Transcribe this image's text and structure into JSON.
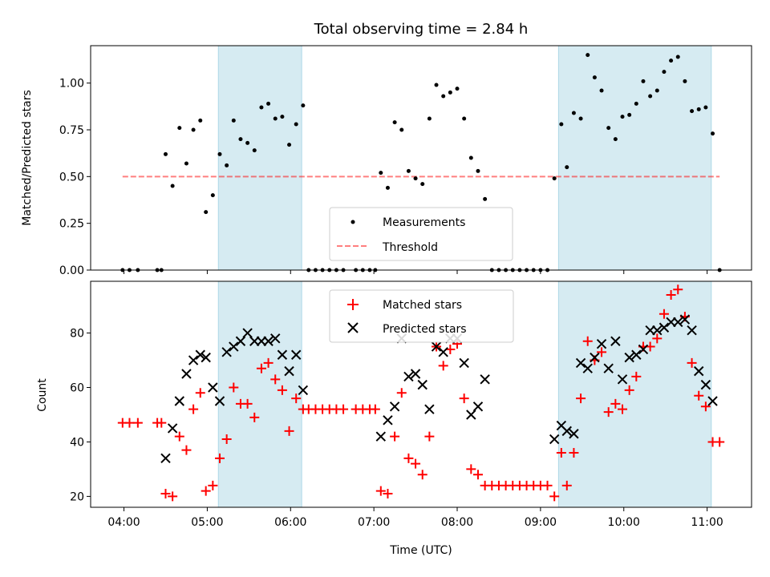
{
  "chart_data": [
    {
      "type": "scatter",
      "title": "Total observing time = 2.84 h",
      "xlabel": "",
      "ylabel": "Matched/Predicted stars",
      "xlim": [
        "03:36",
        "11:32"
      ],
      "ylim": [
        0,
        1.2
      ],
      "yticks": [
        0.0,
        0.25,
        0.5,
        0.75,
        1.0
      ],
      "ytick_labels": [
        "0.00",
        "0.25",
        "0.50",
        "0.75",
        "1.00"
      ],
      "shaded_intervals": [
        [
          "05:08",
          "06:08"
        ],
        [
          "09:13",
          "11:03"
        ]
      ],
      "shade_color": "#add8e6",
      "legend": {
        "placement": "lower center",
        "entries": [
          "Measurements",
          "Threshold"
        ]
      },
      "threshold": {
        "name": "Threshold",
        "value": 0.5,
        "x_range": [
          "03:59",
          "11:09"
        ],
        "color": "#ff0000",
        "style": "dashed",
        "alpha": 0.5
      },
      "series": [
        {
          "name": "Measurements",
          "marker": "dot",
          "color": "#000000",
          "points": [
            [
              "03:59",
              0.0
            ],
            [
              "04:04",
              0.0
            ],
            [
              "04:10",
              0.0
            ],
            [
              "04:24",
              0.0
            ],
            [
              "04:27",
              0.0
            ],
            [
              "04:30",
              0.62
            ],
            [
              "04:35",
              0.45
            ],
            [
              "04:40",
              0.76
            ],
            [
              "04:45",
              0.57
            ],
            [
              "04:50",
              0.75
            ],
            [
              "04:55",
              0.8
            ],
            [
              "04:59",
              0.31
            ],
            [
              "05:04",
              0.4
            ],
            [
              "05:09",
              0.62
            ],
            [
              "05:14",
              0.56
            ],
            [
              "05:19",
              0.8
            ],
            [
              "05:24",
              0.7
            ],
            [
              "05:29",
              0.68
            ],
            [
              "05:34",
              0.64
            ],
            [
              "05:39",
              0.87
            ],
            [
              "05:44",
              0.89
            ],
            [
              "05:49",
              0.81
            ],
            [
              "05:54",
              0.82
            ],
            [
              "05:59",
              0.67
            ],
            [
              "06:04",
              0.78
            ],
            [
              "06:09",
              0.88
            ],
            [
              "06:13",
              0.0
            ],
            [
              "06:18",
              0.0
            ],
            [
              "06:23",
              0.0
            ],
            [
              "06:28",
              0.0
            ],
            [
              "06:33",
              0.0
            ],
            [
              "06:38",
              0.0
            ],
            [
              "06:47",
              0.0
            ],
            [
              "06:52",
              0.0
            ],
            [
              "06:57",
              0.0
            ],
            [
              "07:01",
              0.0
            ],
            [
              "07:05",
              0.52
            ],
            [
              "07:10",
              0.44
            ],
            [
              "07:15",
              0.79
            ],
            [
              "07:20",
              0.75
            ],
            [
              "07:25",
              0.53
            ],
            [
              "07:30",
              0.49
            ],
            [
              "07:35",
              0.46
            ],
            [
              "07:40",
              0.81
            ],
            [
              "07:45",
              0.99
            ],
            [
              "07:50",
              0.93
            ],
            [
              "07:55",
              0.95
            ],
            [
              "08:00",
              0.97
            ],
            [
              "08:05",
              0.81
            ],
            [
              "08:10",
              0.6
            ],
            [
              "08:15",
              0.53
            ],
            [
              "08:20",
              0.38
            ],
            [
              "08:25",
              0.0
            ],
            [
              "08:30",
              0.0
            ],
            [
              "08:35",
              0.0
            ],
            [
              "08:40",
              0.0
            ],
            [
              "08:45",
              0.0
            ],
            [
              "08:50",
              0.0
            ],
            [
              "08:55",
              0.0
            ],
            [
              "09:00",
              0.0
            ],
            [
              "09:05",
              0.0
            ],
            [
              "09:10",
              0.49
            ],
            [
              "09:15",
              0.78
            ],
            [
              "09:19",
              0.55
            ],
            [
              "09:24",
              0.84
            ],
            [
              "09:29",
              0.81
            ],
            [
              "09:34",
              1.15
            ],
            [
              "09:39",
              1.03
            ],
            [
              "09:44",
              0.96
            ],
            [
              "09:49",
              0.76
            ],
            [
              "09:54",
              0.7
            ],
            [
              "09:59",
              0.82
            ],
            [
              "10:04",
              0.83
            ],
            [
              "10:09",
              0.89
            ],
            [
              "10:14",
              1.01
            ],
            [
              "10:19",
              0.93
            ],
            [
              "10:24",
              0.96
            ],
            [
              "10:29",
              1.06
            ],
            [
              "10:34",
              1.12
            ],
            [
              "10:39",
              1.14
            ],
            [
              "10:44",
              1.01
            ],
            [
              "10:49",
              0.85
            ],
            [
              "10:54",
              0.86
            ],
            [
              "10:59",
              0.87
            ],
            [
              "11:04",
              0.73
            ],
            [
              "11:09",
              0.0
            ]
          ]
        }
      ]
    },
    {
      "type": "scatter",
      "title": "",
      "xlabel": "Time (UTC)",
      "ylabel": "Count",
      "xlim": [
        "03:36",
        "11:32"
      ],
      "ylim": [
        16,
        99
      ],
      "yticks": [
        20,
        40,
        60,
        80
      ],
      "ytick_labels": [
        "20",
        "40",
        "60",
        "80"
      ],
      "xticks": [
        "04:00",
        "05:00",
        "06:00",
        "07:00",
        "08:00",
        "09:00",
        "10:00",
        "11:00"
      ],
      "shaded_intervals": [
        [
          "05:08",
          "06:08"
        ],
        [
          "09:13",
          "11:03"
        ]
      ],
      "shade_color": "#add8e6",
      "legend": {
        "placement": "upper center",
        "entries": [
          "Matched stars",
          "Predicted stars"
        ]
      },
      "series": [
        {
          "name": "Matched stars",
          "marker": "plus",
          "color": "#ff0000",
          "points": [
            [
              "03:59",
              47
            ],
            [
              "04:04",
              47
            ],
            [
              "04:10",
              47
            ],
            [
              "04:24",
              47
            ],
            [
              "04:27",
              47
            ],
            [
              "04:30",
              21
            ],
            [
              "04:35",
              20
            ],
            [
              "04:40",
              42
            ],
            [
              "04:45",
              37
            ],
            [
              "04:50",
              52
            ],
            [
              "04:55",
              58
            ],
            [
              "04:59",
              22
            ],
            [
              "05:04",
              24
            ],
            [
              "05:09",
              34
            ],
            [
              "05:14",
              41
            ],
            [
              "05:19",
              60
            ],
            [
              "05:24",
              54
            ],
            [
              "05:29",
              54
            ],
            [
              "05:34",
              49
            ],
            [
              "05:39",
              67
            ],
            [
              "05:44",
              69
            ],
            [
              "05:49",
              63
            ],
            [
              "05:54",
              59
            ],
            [
              "05:59",
              44
            ],
            [
              "06:04",
              56
            ],
            [
              "06:09",
              52
            ],
            [
              "06:13",
              52
            ],
            [
              "06:18",
              52
            ],
            [
              "06:23",
              52
            ],
            [
              "06:28",
              52
            ],
            [
              "06:33",
              52
            ],
            [
              "06:38",
              52
            ],
            [
              "06:47",
              52
            ],
            [
              "06:52",
              52
            ],
            [
              "06:57",
              52
            ],
            [
              "07:01",
              52
            ],
            [
              "07:05",
              22
            ],
            [
              "07:10",
              21
            ],
            [
              "07:15",
              42
            ],
            [
              "07:20",
              58
            ],
            [
              "07:25",
              34
            ],
            [
              "07:30",
              32
            ],
            [
              "07:35",
              28
            ],
            [
              "07:40",
              42
            ],
            [
              "07:45",
              75
            ],
            [
              "07:50",
              68
            ],
            [
              "07:55",
              74
            ],
            [
              "08:00",
              76
            ],
            [
              "08:05",
              56
            ],
            [
              "08:10",
              30
            ],
            [
              "08:15",
              28
            ],
            [
              "08:20",
              24
            ],
            [
              "08:25",
              24
            ],
            [
              "08:30",
              24
            ],
            [
              "08:35",
              24
            ],
            [
              "08:40",
              24
            ],
            [
              "08:45",
              24
            ],
            [
              "08:50",
              24
            ],
            [
              "08:55",
              24
            ],
            [
              "09:00",
              24
            ],
            [
              "09:05",
              24
            ],
            [
              "09:10",
              20
            ],
            [
              "09:15",
              36
            ],
            [
              "09:19",
              24
            ],
            [
              "09:24",
              36
            ],
            [
              "09:29",
              56
            ],
            [
              "09:34",
              77
            ],
            [
              "09:39",
              70
            ],
            [
              "09:44",
              73
            ],
            [
              "09:49",
              51
            ],
            [
              "09:54",
              54
            ],
            [
              "09:59",
              52
            ],
            [
              "10:04",
              59
            ],
            [
              "10:09",
              64
            ],
            [
              "10:14",
              75
            ],
            [
              "10:19",
              75
            ],
            [
              "10:24",
              78
            ],
            [
              "10:29",
              87
            ],
            [
              "10:34",
              94
            ],
            [
              "10:39",
              96
            ],
            [
              "10:44",
              86
            ],
            [
              "10:49",
              69
            ],
            [
              "10:54",
              57
            ],
            [
              "10:59",
              53
            ],
            [
              "11:04",
              40
            ],
            [
              "11:09",
              40
            ]
          ]
        },
        {
          "name": "Predicted stars",
          "marker": "x",
          "color": "#000000",
          "points": [
            [
              "04:30",
              34
            ],
            [
              "04:35",
              45
            ],
            [
              "04:40",
              55
            ],
            [
              "04:45",
              65
            ],
            [
              "04:50",
              70
            ],
            [
              "04:55",
              72
            ],
            [
              "04:59",
              71
            ],
            [
              "05:04",
              60
            ],
            [
              "05:09",
              55
            ],
            [
              "05:14",
              73
            ],
            [
              "05:19",
              75
            ],
            [
              "05:24",
              77
            ],
            [
              "05:29",
              80
            ],
            [
              "05:34",
              77
            ],
            [
              "05:39",
              77
            ],
            [
              "05:44",
              77
            ],
            [
              "05:49",
              78
            ],
            [
              "05:54",
              72
            ],
            [
              "05:59",
              66
            ],
            [
              "06:04",
              72
            ],
            [
              "06:09",
              59
            ],
            [
              "07:05",
              42
            ],
            [
              "07:10",
              48
            ],
            [
              "07:15",
              53
            ],
            [
              "07:20",
              78
            ],
            [
              "07:25",
              64
            ],
            [
              "07:30",
              65
            ],
            [
              "07:35",
              61
            ],
            [
              "07:40",
              52
            ],
            [
              "07:45",
              75
            ],
            [
              "07:50",
              73
            ],
            [
              "07:55",
              78
            ],
            [
              "08:00",
              78
            ],
            [
              "08:05",
              69
            ],
            [
              "08:10",
              50
            ],
            [
              "08:15",
              53
            ],
            [
              "08:20",
              63
            ],
            [
              "09:10",
              41
            ],
            [
              "09:15",
              46
            ],
            [
              "09:19",
              44
            ],
            [
              "09:24",
              43
            ],
            [
              "09:29",
              69
            ],
            [
              "09:34",
              67
            ],
            [
              "09:39",
              71
            ],
            [
              "09:44",
              76
            ],
            [
              "09:49",
              67
            ],
            [
              "09:54",
              77
            ],
            [
              "09:59",
              63
            ],
            [
              "10:04",
              71
            ],
            [
              "10:09",
              72
            ],
            [
              "10:14",
              74
            ],
            [
              "10:19",
              81
            ],
            [
              "10:24",
              81
            ],
            [
              "10:29",
              82
            ],
            [
              "10:34",
              84
            ],
            [
              "10:39",
              84
            ],
            [
              "10:44",
              85
            ],
            [
              "10:49",
              81
            ],
            [
              "10:54",
              66
            ],
            [
              "10:59",
              61
            ],
            [
              "11:04",
              55
            ]
          ]
        }
      ]
    }
  ]
}
